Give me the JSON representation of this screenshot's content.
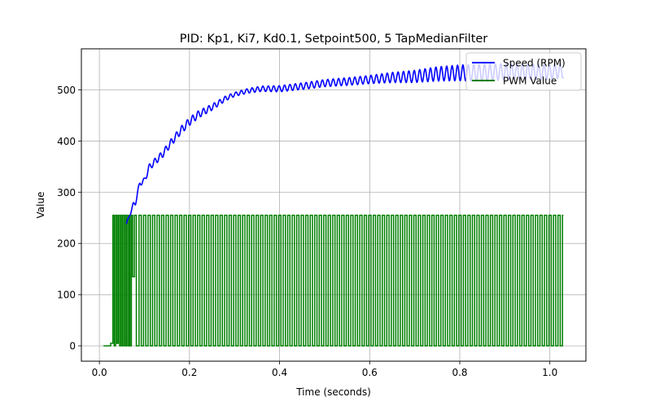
{
  "chart_data": {
    "type": "line",
    "title": "PID: Kp1, Ki7, Kd0.1, Setpoint500, 5 TapMedianFilter",
    "xlabel": "Time (seconds)",
    "ylabel": "Value",
    "xlim": [
      -0.04,
      1.08
    ],
    "ylim": [
      -30,
      580
    ],
    "x_ticks": [
      0.0,
      0.2,
      0.4,
      0.6,
      0.8,
      1.0
    ],
    "x_tick_labels": [
      "0.0",
      "0.2",
      "0.4",
      "0.6",
      "0.8",
      "1.0"
    ],
    "y_ticks": [
      0,
      100,
      200,
      300,
      400,
      500
    ],
    "y_tick_labels": [
      "0",
      "100",
      "200",
      "300",
      "400",
      "500"
    ],
    "grid": true,
    "legend_position": "top-right",
    "series": [
      {
        "name": "Speed (RPM)",
        "color": "#0000ff",
        "points": [
          [
            0.06,
            238
          ],
          [
            0.07,
            262
          ],
          [
            0.075,
            276
          ],
          [
            0.08,
            278
          ],
          [
            0.085,
            300
          ],
          [
            0.09,
            318
          ],
          [
            0.1,
            322
          ],
          [
            0.11,
            348
          ],
          [
            0.12,
            357
          ],
          [
            0.14,
            374
          ],
          [
            0.16,
            398
          ],
          [
            0.18,
            420
          ],
          [
            0.2,
            438
          ],
          [
            0.22,
            452
          ],
          [
            0.25,
            466
          ],
          [
            0.28,
            483
          ],
          [
            0.3,
            491
          ],
          [
            0.33,
            498
          ],
          [
            0.36,
            502
          ],
          [
            0.4,
            502
          ],
          [
            0.43,
            505
          ],
          [
            0.46,
            508
          ],
          [
            0.5,
            513
          ],
          [
            0.55,
            516
          ],
          [
            0.6,
            520
          ],
          [
            0.65,
            524
          ],
          [
            0.7,
            526
          ],
          [
            0.75,
            531
          ],
          [
            0.8,
            533
          ],
          [
            0.85,
            533
          ],
          [
            0.9,
            535
          ],
          [
            0.95,
            535
          ],
          [
            1.0,
            535
          ],
          [
            1.03,
            537
          ]
        ],
        "oscillation_amplitude": [
          [
            0.06,
            2
          ],
          [
            0.1,
            6
          ],
          [
            0.2,
            8
          ],
          [
            0.3,
            4
          ],
          [
            0.4,
            6
          ],
          [
            0.6,
            8
          ],
          [
            0.75,
            14
          ],
          [
            0.85,
            17
          ],
          [
            1.0,
            15
          ],
          [
            1.03,
            14
          ]
        ],
        "oscillation_period": 0.012
      },
      {
        "name": "PWM Value",
        "color": "#008000",
        "points": [
          [
            0.009,
            0
          ],
          [
            0.025,
            0
          ],
          [
            0.025,
            5
          ],
          [
            0.03,
            5
          ],
          [
            0.03,
            255
          ],
          [
            0.033,
            255
          ],
          [
            0.033,
            0
          ],
          [
            0.036,
            0
          ],
          [
            0.036,
            255
          ],
          [
            0.039,
            255
          ],
          [
            0.039,
            5
          ],
          [
            0.042,
            5
          ],
          [
            0.042,
            255
          ],
          [
            0.045,
            255
          ],
          [
            0.045,
            0
          ],
          [
            0.048,
            0
          ],
          [
            0.048,
            255
          ],
          [
            0.051,
            255
          ],
          [
            0.051,
            0
          ],
          [
            0.054,
            0
          ],
          [
            0.054,
            255
          ],
          [
            0.057,
            255
          ],
          [
            0.057,
            0
          ],
          [
            0.06,
            0
          ],
          [
            0.06,
            255
          ],
          [
            0.063,
            255
          ],
          [
            0.063,
            0
          ],
          [
            0.066,
            0
          ],
          [
            0.066,
            255
          ],
          [
            0.068,
            255
          ],
          [
            0.068,
            0
          ],
          [
            0.071,
            0
          ],
          [
            0.071,
            255
          ],
          [
            0.074,
            255
          ],
          [
            0.074,
            135
          ],
          [
            0.078,
            135
          ],
          [
            0.078,
            255
          ],
          [
            0.082,
            255
          ],
          [
            0.082,
            0
          ],
          [
            0.088,
            0
          ]
        ],
        "square_wave": {
          "start": 0.088,
          "end": 1.03,
          "high": 255,
          "low": 0,
          "period": 0.01,
          "final_level": 255
        }
      }
    ]
  }
}
